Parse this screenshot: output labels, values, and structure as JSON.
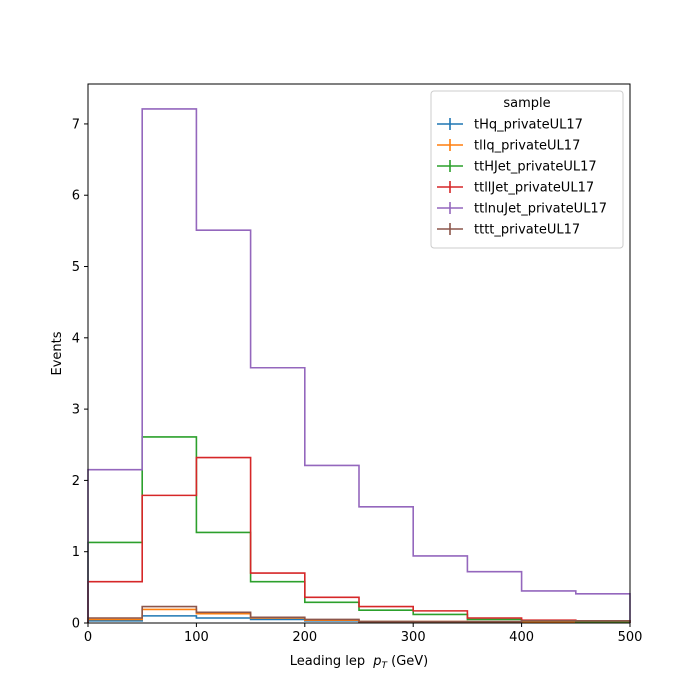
{
  "chart_data": {
    "type": "histogram-step",
    "x_edges": [
      0,
      50,
      100,
      150,
      200,
      250,
      300,
      350,
      400,
      450,
      500
    ],
    "xlim": [
      0,
      500
    ],
    "ylim": [
      0,
      7.56
    ],
    "xticks": [
      0,
      100,
      200,
      300,
      400,
      500
    ],
    "yticks": [
      0,
      1,
      2,
      3,
      4,
      5,
      6,
      7
    ],
    "xlabel": "Leading lep",
    "xlabel_math": "p",
    "xlabel_sub": "T",
    "xlabel_unit": " (GeV)",
    "ylabel": "Events",
    "grid": false,
    "legend": {
      "title": "sample",
      "position": "top-right"
    },
    "series": [
      {
        "name": "tHq_privateUL17",
        "color": "#1f77b4",
        "values": [
          0.03,
          0.1,
          0.07,
          0.05,
          0.03,
          0.02,
          0.01,
          0.01,
          0.01,
          0.01
        ]
      },
      {
        "name": "tllq_privateUL17",
        "color": "#ff7f0e",
        "values": [
          0.05,
          0.19,
          0.13,
          0.07,
          0.04,
          0.02,
          0.02,
          0.01,
          0.01,
          0.01
        ]
      },
      {
        "name": "ttHJet_privateUL17",
        "color": "#2ca02c",
        "values": [
          1.13,
          2.61,
          1.27,
          0.58,
          0.29,
          0.18,
          0.12,
          0.05,
          0.03,
          0.02
        ]
      },
      {
        "name": "ttllJet_privateUL17",
        "color": "#d62728",
        "values": [
          0.58,
          1.79,
          2.32,
          0.7,
          0.36,
          0.23,
          0.17,
          0.07,
          0.04,
          0.03
        ]
      },
      {
        "name": "ttlnuJet_privateUL17",
        "color": "#9467bd",
        "values": [
          2.15,
          7.21,
          5.51,
          3.58,
          2.21,
          1.63,
          0.94,
          0.72,
          0.45,
          0.41
        ]
      },
      {
        "name": "tttt_privateUL17",
        "color": "#8c564b",
        "values": [
          0.07,
          0.23,
          0.15,
          0.08,
          0.05,
          0.02,
          0.02,
          0.02,
          0.03,
          0.03
        ]
      }
    ]
  }
}
